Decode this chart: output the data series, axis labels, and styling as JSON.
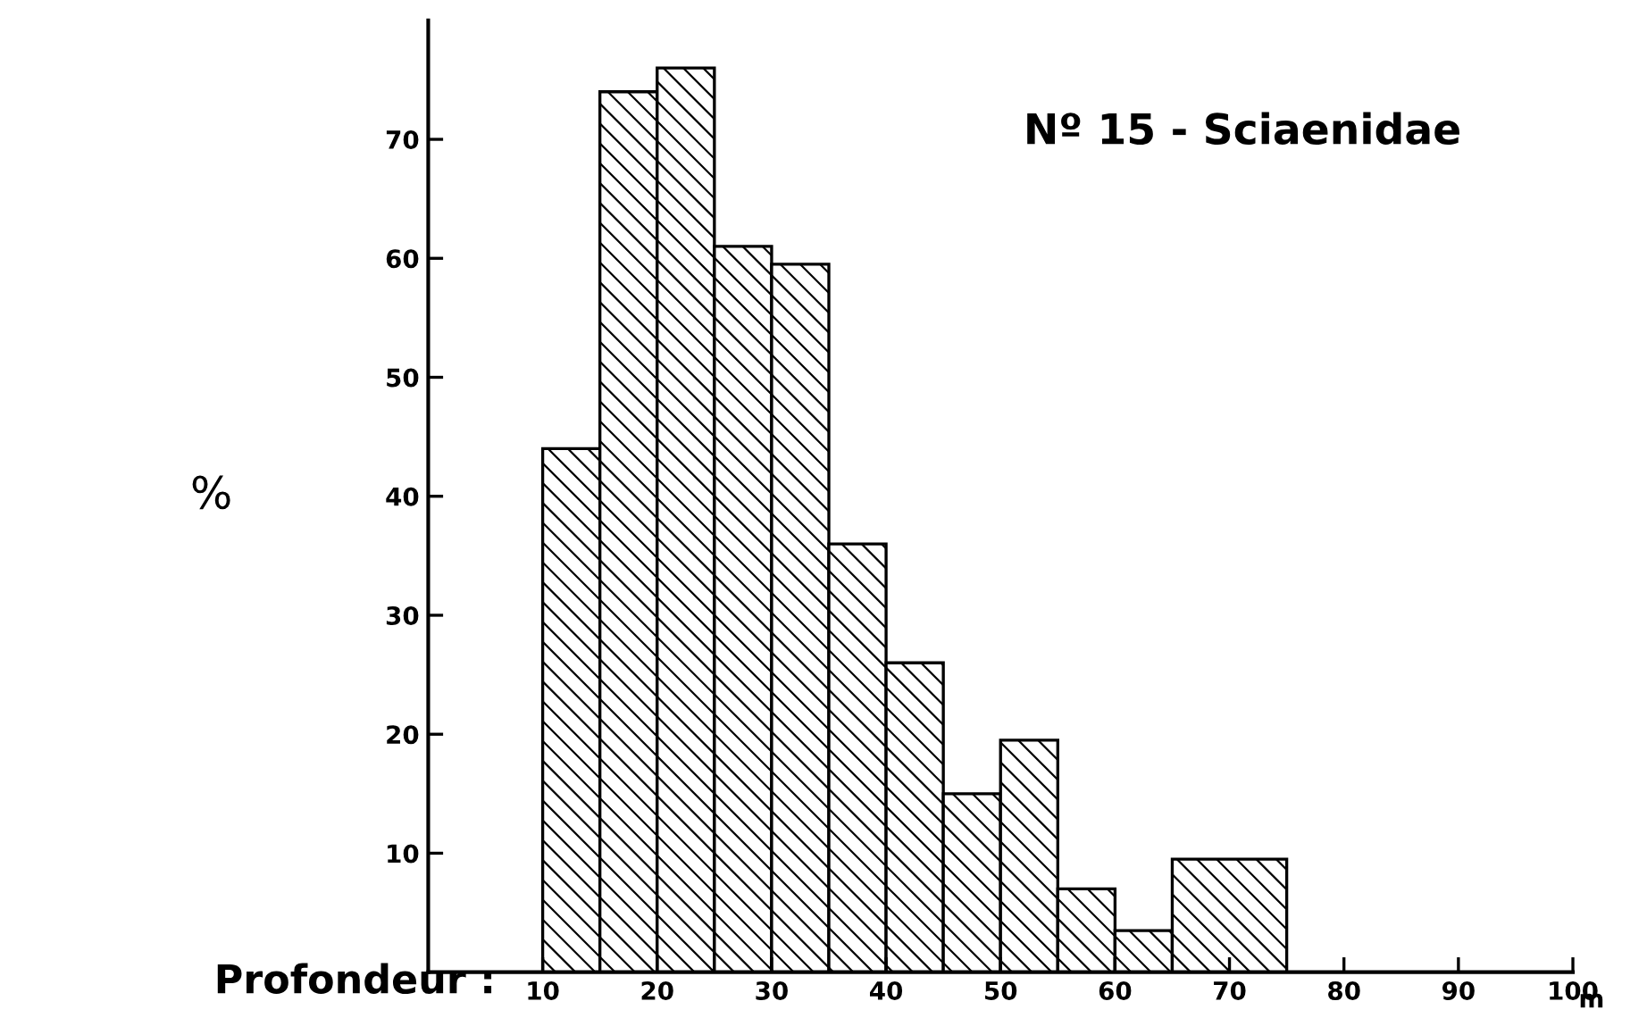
{
  "chart_data": {
    "type": "histogram",
    "title": "Nº 15 - Sciaenidae",
    "ylabel": "%",
    "xlabel": "m",
    "annotations": [
      "Profondeur :"
    ],
    "bins": [
      10,
      15,
      20,
      25,
      30,
      35,
      40,
      45,
      50,
      55,
      60,
      65,
      75
    ],
    "values": [
      44,
      74,
      76,
      61,
      59.5,
      36,
      26,
      15,
      19.5,
      7,
      3.5,
      9.5
    ],
    "color": "#000000",
    "xlim": [
      0,
      100
    ],
    "xticks": [
      10,
      20,
      30,
      40,
      50,
      60,
      70,
      80,
      90,
      100
    ],
    "ylim": [
      0,
      80
    ],
    "yticks": [
      10,
      20,
      30,
      40,
      50,
      60,
      70
    ],
    "grid": false,
    "legend": false
  }
}
